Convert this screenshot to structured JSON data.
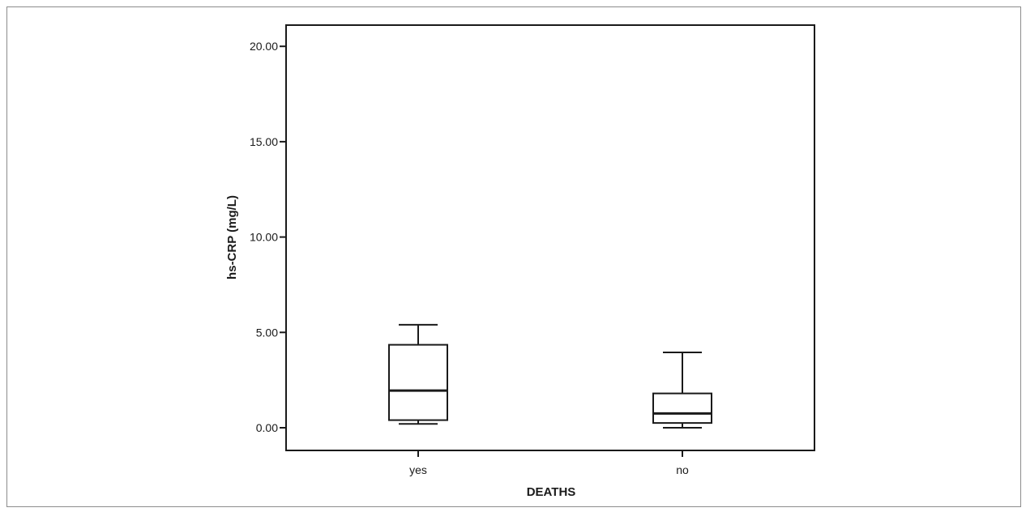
{
  "chart_data": {
    "type": "boxplot",
    "xlabel": "DEATHS",
    "ylabel": "hs-CRP (mg/L)",
    "ylim": [
      -1.2,
      21.2
    ],
    "yticks": [
      0,
      5,
      10,
      15,
      20
    ],
    "ytick_labels": [
      "0.00",
      "5.00",
      "10.00",
      "15.00",
      "20.00"
    ],
    "categories": [
      "yes",
      "no"
    ],
    "boxes": [
      {
        "category": "yes",
        "whisker_low": 0.2,
        "q1": 0.4,
        "median": 1.95,
        "q3": 4.35,
        "whisker_high": 5.4
      },
      {
        "category": "no",
        "whisker_low": 0.0,
        "q1": 0.25,
        "median": 0.75,
        "q3": 1.8,
        "whisker_high": 3.95
      }
    ],
    "grid": false,
    "legend": "none"
  }
}
